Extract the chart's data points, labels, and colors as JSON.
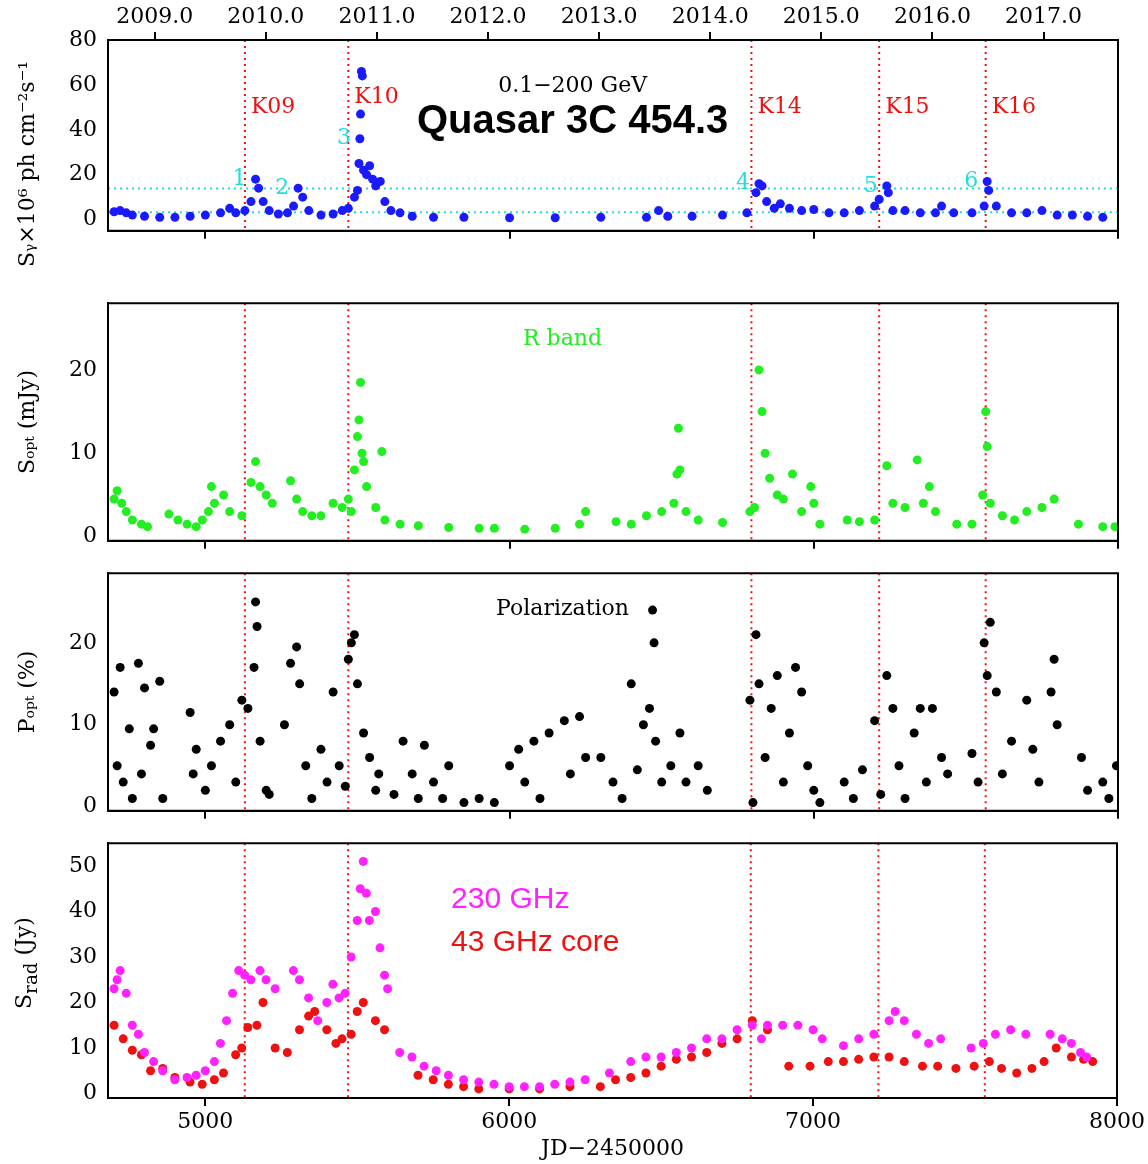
{
  "chart_data": [
    {
      "type": "scatter",
      "title": "Quasar 3C 454.3",
      "ylabel": "Sᵧ×10⁶ ph cm⁻²s⁻¹",
      "xlim": [
        4680,
        8000
      ],
      "xticks": [
        5000,
        6000,
        7000,
        8000
      ],
      "ylim": [
        -5,
        80
      ],
      "yticks": [
        0,
        20,
        40,
        60,
        80
      ],
      "x2lim": [
        2008.58,
        2017.67
      ],
      "x2ticks": [
        {
          "value": 2009,
          "label": "2009.0"
        },
        {
          "value": 2010,
          "label": "2010.0"
        },
        {
          "value": 2011,
          "label": "2011.0"
        },
        {
          "value": 2012,
          "label": "2012.0"
        },
        {
          "value": 2013,
          "label": "2013.0"
        },
        {
          "value": 2014,
          "label": "2014.0"
        },
        {
          "value": 2015,
          "label": "2015.0"
        },
        {
          "value": 2016,
          "label": "2016.0"
        },
        {
          "value": 2017,
          "label": "2017.0"
        }
      ],
      "tick_labels": "y",
      "grid": false,
      "marker": "circle",
      "annotations": [
        "0.1−200 GeV",
        {
          "text": "1",
          "x": 5165,
          "y": 18
        },
        {
          "text": "2",
          "x": 5305,
          "y": 14
        },
        {
          "text": "3",
          "x": 5508,
          "y": 36
        },
        {
          "text": "4",
          "x": 6820,
          "y": 16
        },
        {
          "text": "5",
          "x": 7240,
          "y": 15
        },
        {
          "text": "6",
          "x": 7570,
          "y": 17
        }
      ],
      "ref_lines": [
        {
          "axis": "x",
          "value": 5130,
          "label": "K09",
          "color": "#ee1111",
          "line_style": "dotted"
        },
        {
          "axis": "x",
          "value": 5470,
          "label": "K10",
          "color": "#ee1111",
          "line_style": "dotted"
        },
        {
          "axis": "x",
          "value": 6795,
          "label": "K14",
          "color": "#ee1111",
          "line_style": "dotted"
        },
        {
          "axis": "x",
          "value": 7215,
          "label": "K15",
          "color": "#ee1111",
          "line_style": "dotted"
        },
        {
          "axis": "x",
          "value": 7565,
          "label": "K16",
          "color": "#ee1111",
          "line_style": "dotted"
        },
        {
          "axis": "y",
          "value": 13.8,
          "color": "#22dddd",
          "line_style": "dotted"
        },
        {
          "axis": "y",
          "value": 3.3,
          "color": "#22dddd",
          "line_style": "dotted"
        }
      ],
      "series": [
        {
          "color": "#1a1aff",
          "x": [
            4700,
            4720,
            4740,
            4760,
            4800,
            4850,
            4900,
            4950,
            5000,
            5050,
            5080,
            5100,
            5130,
            5150,
            5165,
            5175,
            5190,
            5210,
            5240,
            5270,
            5290,
            5305,
            5320,
            5340,
            5380,
            5420,
            5450,
            5470,
            5490,
            5500,
            5505,
            5508,
            5510,
            5513,
            5516,
            5520,
            5530,
            5540,
            5550,
            5560,
            5575,
            5590,
            5610,
            5640,
            5680,
            5750,
            5850,
            6000,
            6150,
            6300,
            6450,
            6490,
            6520,
            6600,
            6700,
            6780,
            6810,
            6820,
            6830,
            6845,
            6870,
            6890,
            6920,
            6960,
            7000,
            7050,
            7100,
            7150,
            7200,
            7215,
            7240,
            7245,
            7260,
            7300,
            7350,
            7400,
            7420,
            7460,
            7520,
            7560,
            7570,
            7575,
            7600,
            7650,
            7700,
            7750,
            7800,
            7850,
            7900,
            7950
          ],
          "values": [
            3.5,
            4,
            3,
            2,
            1.5,
            1,
            1,
            1.5,
            2,
            3,
            5,
            3,
            4,
            8,
            18,
            14,
            8,
            4,
            2.5,
            3,
            6,
            14,
            10,
            4,
            2,
            2.5,
            4,
            5,
            10,
            13,
            25,
            36,
            47,
            66,
            64,
            22,
            20,
            24,
            18,
            15,
            17,
            8,
            4,
            3,
            1.5,
            1,
            1,
            0.8,
            0.8,
            1,
            1,
            4,
            1.5,
            1.5,
            2,
            3,
            12,
            16,
            15,
            8,
            5,
            7,
            5,
            4,
            4.5,
            3,
            3,
            4,
            6,
            9,
            15,
            12,
            4,
            4,
            3,
            3,
            6,
            3,
            3,
            6,
            17,
            13,
            6,
            3,
            3,
            4,
            2,
            2,
            1.5,
            1
          ]
        }
      ]
    },
    {
      "type": "scatter",
      "ylabel": "Sₒₚₜ (mJy)",
      "xlim": [
        4680,
        8000
      ],
      "xticks": [
        5000,
        6000,
        7000,
        8000
      ],
      "ylim": [
        -0.5,
        28
      ],
      "yticks": [
        0,
        10,
        20
      ],
      "tick_labels": "y",
      "grid": false,
      "marker": "circle",
      "legend": "top",
      "ref_lines": [
        {
          "axis": "x",
          "value": 5130,
          "color": "#ee1111",
          "line_style": "dotted"
        },
        {
          "axis": "x",
          "value": 5470,
          "color": "#ee1111",
          "line_style": "dotted"
        },
        {
          "axis": "x",
          "value": 6795,
          "color": "#ee1111",
          "line_style": "dotted"
        },
        {
          "axis": "x",
          "value": 7215,
          "color": "#ee1111",
          "line_style": "dotted"
        },
        {
          "axis": "x",
          "value": 7565,
          "color": "#ee1111",
          "line_style": "dotted"
        }
      ],
      "series": [
        {
          "name": "R band",
          "color": "#22ee22",
          "x": [
            4700,
            4710,
            4725,
            4740,
            4760,
            4790,
            4810,
            4880,
            4910,
            4940,
            4970,
            4990,
            5010,
            5020,
            5030,
            5060,
            5080,
            5120,
            5150,
            5165,
            5180,
            5200,
            5220,
            5280,
            5300,
            5320,
            5350,
            5380,
            5420,
            5450,
            5470,
            5480,
            5490,
            5500,
            5505,
            5510,
            5515,
            5520,
            5530,
            5560,
            5580,
            5590,
            5640,
            5700,
            5800,
            5900,
            5950,
            6050,
            6150,
            6230,
            6250,
            6350,
            6400,
            6450,
            6500,
            6540,
            6550,
            6555,
            6560,
            6580,
            6620,
            6700,
            6790,
            6805,
            6820,
            6830,
            6840,
            6855,
            6880,
            6900,
            6930,
            6960,
            6990,
            7000,
            7020,
            7110,
            7150,
            7200,
            7240,
            7260,
            7300,
            7340,
            7360,
            7380,
            7400,
            7470,
            7520,
            7555,
            7565,
            7570,
            7580,
            7620,
            7660,
            7700,
            7750,
            7790,
            7870,
            7950,
            7990
          ],
          "values": [
            4.5,
            5.5,
            4,
            3,
            2,
            1.5,
            1.2,
            2.7,
            2,
            1.5,
            1.2,
            2,
            3,
            6,
            4,
            5,
            3,
            2.5,
            6.5,
            9,
            6,
            5,
            4,
            6.7,
            4.5,
            3,
            2.5,
            2.5,
            4,
            3.5,
            4.5,
            3,
            8,
            12,
            14,
            18.5,
            10,
            9,
            6,
            3.5,
            10.2,
            2,
            1.5,
            1.3,
            1.1,
            1,
            1,
            0.9,
            1,
            1.5,
            3,
            1.8,
            1.5,
            2.5,
            3,
            4,
            7.5,
            13,
            8,
            3,
            2,
            1.7,
            3,
            3.5,
            20,
            15,
            10,
            7,
            5,
            4.5,
            7.5,
            3,
            6,
            4,
            1.5,
            2,
            1.8,
            2,
            8.5,
            4,
            3.5,
            9.2,
            4,
            6,
            3,
            1.5,
            1.5,
            5,
            15,
            10.8,
            4,
            2.5,
            2,
            3,
            3.5,
            4.5,
            1.5,
            1.2,
            1.2
          ]
        }
      ]
    },
    {
      "type": "scatter",
      "ylabel": "Pₒₚₜ (%)",
      "xlim": [
        4680,
        8000
      ],
      "xticks": [
        5000,
        6000,
        7000,
        8000
      ],
      "ylim": [
        -0.5,
        28.5
      ],
      "yticks": [
        0,
        10,
        20
      ],
      "tick_labels": "y",
      "grid": false,
      "marker": "circle",
      "legend": "top",
      "ref_lines": [
        {
          "axis": "x",
          "value": 5130,
          "color": "#ee1111",
          "line_style": "dotted"
        },
        {
          "axis": "x",
          "value": 5470,
          "color": "#ee1111",
          "line_style": "dotted"
        },
        {
          "axis": "x",
          "value": 6795,
          "color": "#ee1111",
          "line_style": "dotted"
        },
        {
          "axis": "x",
          "value": 7215,
          "color": "#ee1111",
          "line_style": "dotted"
        },
        {
          "axis": "x",
          "value": 7565,
          "color": "#ee1111",
          "line_style": "dotted"
        }
      ],
      "series": [
        {
          "name": "Polarization",
          "color": "#000000",
          "x": [
            4700,
            4710,
            4720,
            4730,
            4750,
            4760,
            4780,
            4790,
            4800,
            4820,
            4830,
            4850,
            4860,
            4950,
            4960,
            4970,
            5000,
            5020,
            5050,
            5080,
            5100,
            5120,
            5140,
            5160,
            5165,
            5170,
            5180,
            5200,
            5210,
            5260,
            5280,
            5300,
            5310,
            5330,
            5350,
            5380,
            5400,
            5420,
            5440,
            5460,
            5470,
            5480,
            5490,
            5500,
            5520,
            5540,
            5560,
            5570,
            5620,
            5650,
            5680,
            5700,
            5720,
            5750,
            5780,
            5800,
            5850,
            5900,
            5950,
            6000,
            6030,
            6050,
            6080,
            6100,
            6130,
            6180,
            6200,
            6230,
            6250,
            6300,
            6340,
            6370,
            6400,
            6420,
            6440,
            6460,
            6470,
            6475,
            6480,
            6500,
            6530,
            6560,
            6580,
            6620,
            6650,
            6790,
            6800,
            6810,
            6820,
            6840,
            6860,
            6880,
            6900,
            6920,
            6940,
            6960,
            6980,
            7000,
            7020,
            7100,
            7130,
            7160,
            7200,
            7220,
            7240,
            7260,
            7280,
            7300,
            7330,
            7350,
            7370,
            7390,
            7420,
            7440,
            7520,
            7540,
            7560,
            7570,
            7580,
            7600,
            7620,
            7650,
            7700,
            7720,
            7740,
            7780,
            7790,
            7800,
            7880,
            7900,
            7950,
            7970,
            7995
          ],
          "values": [
            14,
            5,
            17,
            3,
            9.5,
            1,
            17.5,
            4,
            14.5,
            7.5,
            9.5,
            15.3,
            1,
            11.5,
            4,
            7,
            2,
            5,
            8,
            10,
            3,
            13,
            12,
            17,
            25,
            22,
            8,
            2,
            1.5,
            10,
            17.5,
            19.5,
            15,
            5,
            1,
            7,
            3,
            14,
            5,
            2.5,
            18,
            20,
            21,
            15,
            9,
            6,
            2,
            4,
            1.5,
            8,
            4,
            1,
            7.5,
            3,
            1,
            5,
            0.5,
            1,
            0.5,
            5,
            7,
            3,
            8,
            1,
            9,
            10.5,
            4,
            11,
            6,
            6,
            3,
            1,
            15,
            4.5,
            10,
            12,
            24,
            20,
            8,
            3,
            5,
            9,
            3,
            5,
            2,
            13,
            0.5,
            21,
            15,
            6,
            12,
            16,
            3,
            9,
            17,
            14,
            5,
            2,
            0.5,
            3,
            1,
            4.5,
            10.5,
            1.5,
            16,
            12,
            5,
            1,
            9,
            12,
            3,
            12,
            6,
            4,
            6.5,
            3,
            20,
            16,
            22.5,
            14,
            4,
            8,
            13,
            7,
            3,
            14,
            18,
            10,
            6,
            2,
            3,
            1,
            5
          ]
        }
      ]
    },
    {
      "type": "scatter",
      "ylabel": "S$_{rad}$ (Jy)",
      "xlabel": "JD−2450000",
      "xlim": [
        4680,
        8000
      ],
      "xticks": [
        5000,
        6000,
        7000,
        8000
      ],
      "ylim": [
        -1,
        55
      ],
      "yticks": [
        0,
        10,
        20,
        30,
        40,
        50
      ],
      "grid": false,
      "marker": "circle",
      "legend": "top left",
      "ref_lines": [
        {
          "axis": "x",
          "value": 5130,
          "color": "#ee1111",
          "line_style": "dotted"
        },
        {
          "axis": "x",
          "value": 5470,
          "color": "#ee1111",
          "line_style": "dotted"
        },
        {
          "axis": "x",
          "value": 6795,
          "color": "#ee1111",
          "line_style": "dotted"
        },
        {
          "axis": "x",
          "value": 7215,
          "color": "#ee1111",
          "line_style": "dotted"
        },
        {
          "axis": "x",
          "value": 7565,
          "color": "#ee1111",
          "line_style": "dotted"
        }
      ],
      "series": [
        {
          "name": "230 GHz",
          "color": "#ff22ff",
          "x": [
            4700,
            4710,
            4720,
            4740,
            4760,
            4780,
            4800,
            4830,
            4860,
            4900,
            4940,
            4970,
            5000,
            5030,
            5050,
            5070,
            5090,
            5110,
            5130,
            5150,
            5180,
            5200,
            5230,
            5290,
            5310,
            5340,
            5370,
            5400,
            5420,
            5440,
            5460,
            5480,
            5500,
            5510,
            5520,
            5530,
            5540,
            5560,
            5575,
            5590,
            5600,
            5640,
            5680,
            5720,
            5760,
            5800,
            5850,
            5900,
            5950,
            6000,
            6050,
            6100,
            6150,
            6200,
            6250,
            6330,
            6400,
            6450,
            6500,
            6550,
            6600,
            6650,
            6700,
            6750,
            6800,
            6830,
            6850,
            6900,
            6950,
            7000,
            7030,
            7100,
            7150,
            7200,
            7250,
            7270,
            7300,
            7340,
            7380,
            7420,
            7520,
            7560,
            7600,
            7650,
            7700,
            7780,
            7820,
            7850,
            7880,
            7900
          ],
          "values": [
            23,
            25,
            27,
            22,
            15,
            13,
            9,
            7,
            5,
            3,
            3.5,
            4,
            5,
            7,
            11,
            16,
            22,
            27,
            26,
            25,
            27,
            25,
            23,
            27,
            25,
            21,
            16,
            20,
            24,
            21,
            22,
            30,
            38,
            45,
            51,
            44,
            38,
            40,
            32,
            26,
            23,
            9,
            8,
            6,
            5,
            4,
            3,
            2.5,
            2,
            1.5,
            1.5,
            1.5,
            2,
            2.5,
            3,
            4.5,
            7,
            8,
            8,
            9,
            10,
            12,
            12,
            14,
            15,
            12,
            15,
            15,
            15,
            14,
            12,
            10.5,
            12,
            13,
            16,
            18,
            16,
            13,
            11,
            12,
            10,
            11,
            13,
            14,
            13,
            13,
            12,
            11,
            9,
            8
          ]
        },
        {
          "name": "43 GHz core",
          "color": "#ee1111",
          "x": [
            4700,
            4730,
            4760,
            4790,
            4820,
            4860,
            4900,
            4950,
            4990,
            5030,
            5060,
            5100,
            5120,
            5140,
            5170,
            5190,
            5230,
            5270,
            5310,
            5340,
            5360,
            5400,
            5430,
            5450,
            5480,
            5500,
            5520,
            5560,
            5590,
            5700,
            5750,
            5800,
            5850,
            5900,
            6000,
            6100,
            6200,
            6300,
            6350,
            6400,
            6450,
            6500,
            6550,
            6600,
            6650,
            6700,
            6750,
            6800,
            6850,
            6920,
            6990,
            7050,
            7100,
            7150,
            7200,
            7250,
            7300,
            7360,
            7410,
            7470,
            7530,
            7580,
            7620,
            7670,
            7720,
            7760,
            7800,
            7850,
            7890,
            7920
          ],
          "values": [
            15,
            12,
            9.5,
            8.5,
            5,
            5.5,
            3.5,
            2.5,
            2,
            3,
            4.5,
            8.5,
            10,
            14.5,
            15,
            20,
            10,
            9,
            14,
            17,
            18,
            14,
            11,
            12,
            13,
            18,
            20,
            16,
            14,
            4,
            3,
            2,
            1.5,
            1,
            1,
            1,
            1.5,
            1.5,
            3,
            3.5,
            4.5,
            6,
            7.5,
            8,
            9,
            11,
            12,
            16,
            14,
            6,
            6,
            7,
            7,
            7.5,
            8,
            8,
            7,
            6,
            6,
            5.5,
            6,
            7,
            5.5,
            4.5,
            5.5,
            7,
            10,
            8,
            7.5,
            7
          ]
        }
      ]
    }
  ]
}
